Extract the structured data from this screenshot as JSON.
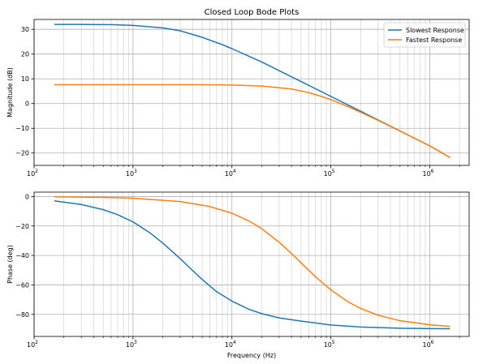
{
  "chart_data": [
    {
      "type": "line",
      "title": "Closed Loop Bode Plots",
      "xlabel": "",
      "ylabel": "Magnitude (dB)",
      "xscale": "log",
      "xlim": [
        100,
        2500000
      ],
      "ylim": [
        -25,
        34
      ],
      "xticks": [
        100,
        1000,
        10000,
        100000,
        1000000
      ],
      "xtick_labels": [
        [
          "10",
          "2"
        ],
        [
          "10",
          "3"
        ],
        [
          "10",
          "4"
        ],
        [
          "10",
          "5"
        ],
        [
          "10",
          "6"
        ]
      ],
      "yticks": [
        30,
        20,
        10,
        0,
        -10,
        -20
      ],
      "ytick_labels": [
        "30",
        "20",
        "10",
        "0",
        "−10",
        "−20"
      ],
      "grid": "both-major-minor",
      "legend": {
        "placement": "upper right",
        "entries": [
          "Slowest Response",
          "Fastest Response"
        ]
      },
      "series": [
        {
          "name": "Slowest Response",
          "color": "#1f77b4",
          "x": [
            160,
            300,
            600,
            1000,
            2000,
            3000,
            5000,
            8000,
            10000,
            20000,
            50000,
            100000,
            200000,
            500000,
            1000000,
            1600000
          ],
          "y": [
            32,
            32,
            31.9,
            31.6,
            30.6,
            29.4,
            26.8,
            23.8,
            22.2,
            16.8,
            8.9,
            2.9,
            -3.1,
            -11.1,
            -17.1,
            -21.8
          ]
        },
        {
          "name": "Fastest Response",
          "color": "#ff7f0e",
          "x": [
            160,
            1000,
            5000,
            10000,
            20000,
            40000,
            60000,
            80000,
            100000,
            150000,
            200000,
            300000,
            500000,
            1000000,
            1600000
          ],
          "y": [
            7.6,
            7.6,
            7.6,
            7.5,
            7.1,
            5.9,
            4.4,
            2.9,
            1.6,
            -1.3,
            -3.5,
            -6.8,
            -11.1,
            -17.1,
            -21.8
          ]
        }
      ]
    },
    {
      "type": "line",
      "title": "",
      "xlabel": "Frequency (Hz)",
      "ylabel": "Phase (deg)",
      "xscale": "log",
      "xlim": [
        100,
        2500000
      ],
      "ylim": [
        -95,
        3
      ],
      "xticks": [
        100,
        1000,
        10000,
        100000,
        1000000
      ],
      "xtick_labels": [
        [
          "10",
          "2"
        ],
        [
          "10",
          "3"
        ],
        [
          "10",
          "4"
        ],
        [
          "10",
          "5"
        ],
        [
          "10",
          "6"
        ]
      ],
      "yticks": [
        0,
        -20,
        -40,
        -60,
        -80
      ],
      "ytick_labels": [
        "0",
        "−20",
        "−40",
        "−60",
        "−80"
      ],
      "grid": "both-major-minor",
      "series": [
        {
          "name": "Slowest Response",
          "color": "#1f77b4",
          "x": [
            160,
            300,
            500,
            700,
            1000,
            1500,
            2000,
            3000,
            4000,
            5000,
            7000,
            10000,
            15000,
            20000,
            30000,
            50000,
            100000,
            200000,
            500000,
            1000000,
            1600000
          ],
          "y": [
            -2.9,
            -5.4,
            -8.9,
            -12.3,
            -17.2,
            -24.9,
            -31.6,
            -42.2,
            -50.2,
            -56.3,
            -64.6,
            -71.0,
            -76.7,
            -79.5,
            -82.4,
            -84.6,
            -87.2,
            -88.6,
            -89.4,
            -89.7,
            -89.8
          ]
        },
        {
          "name": "Fastest Response",
          "color": "#ff7f0e",
          "x": [
            160,
            500,
            1000,
            3000,
            6000,
            10000,
            15000,
            20000,
            30000,
            40000,
            50000,
            70000,
            100000,
            150000,
            200000,
            300000,
            500000,
            1000000,
            1600000
          ],
          "y": [
            -0.2,
            -0.6,
            -1.1,
            -3.4,
            -6.8,
            -11.3,
            -16.7,
            -21.8,
            -31.0,
            -38.7,
            -45.0,
            -54.5,
            -63.4,
            -71.6,
            -76.0,
            -80.6,
            -84.3,
            -87.1,
            -88.2
          ]
        }
      ]
    }
  ]
}
